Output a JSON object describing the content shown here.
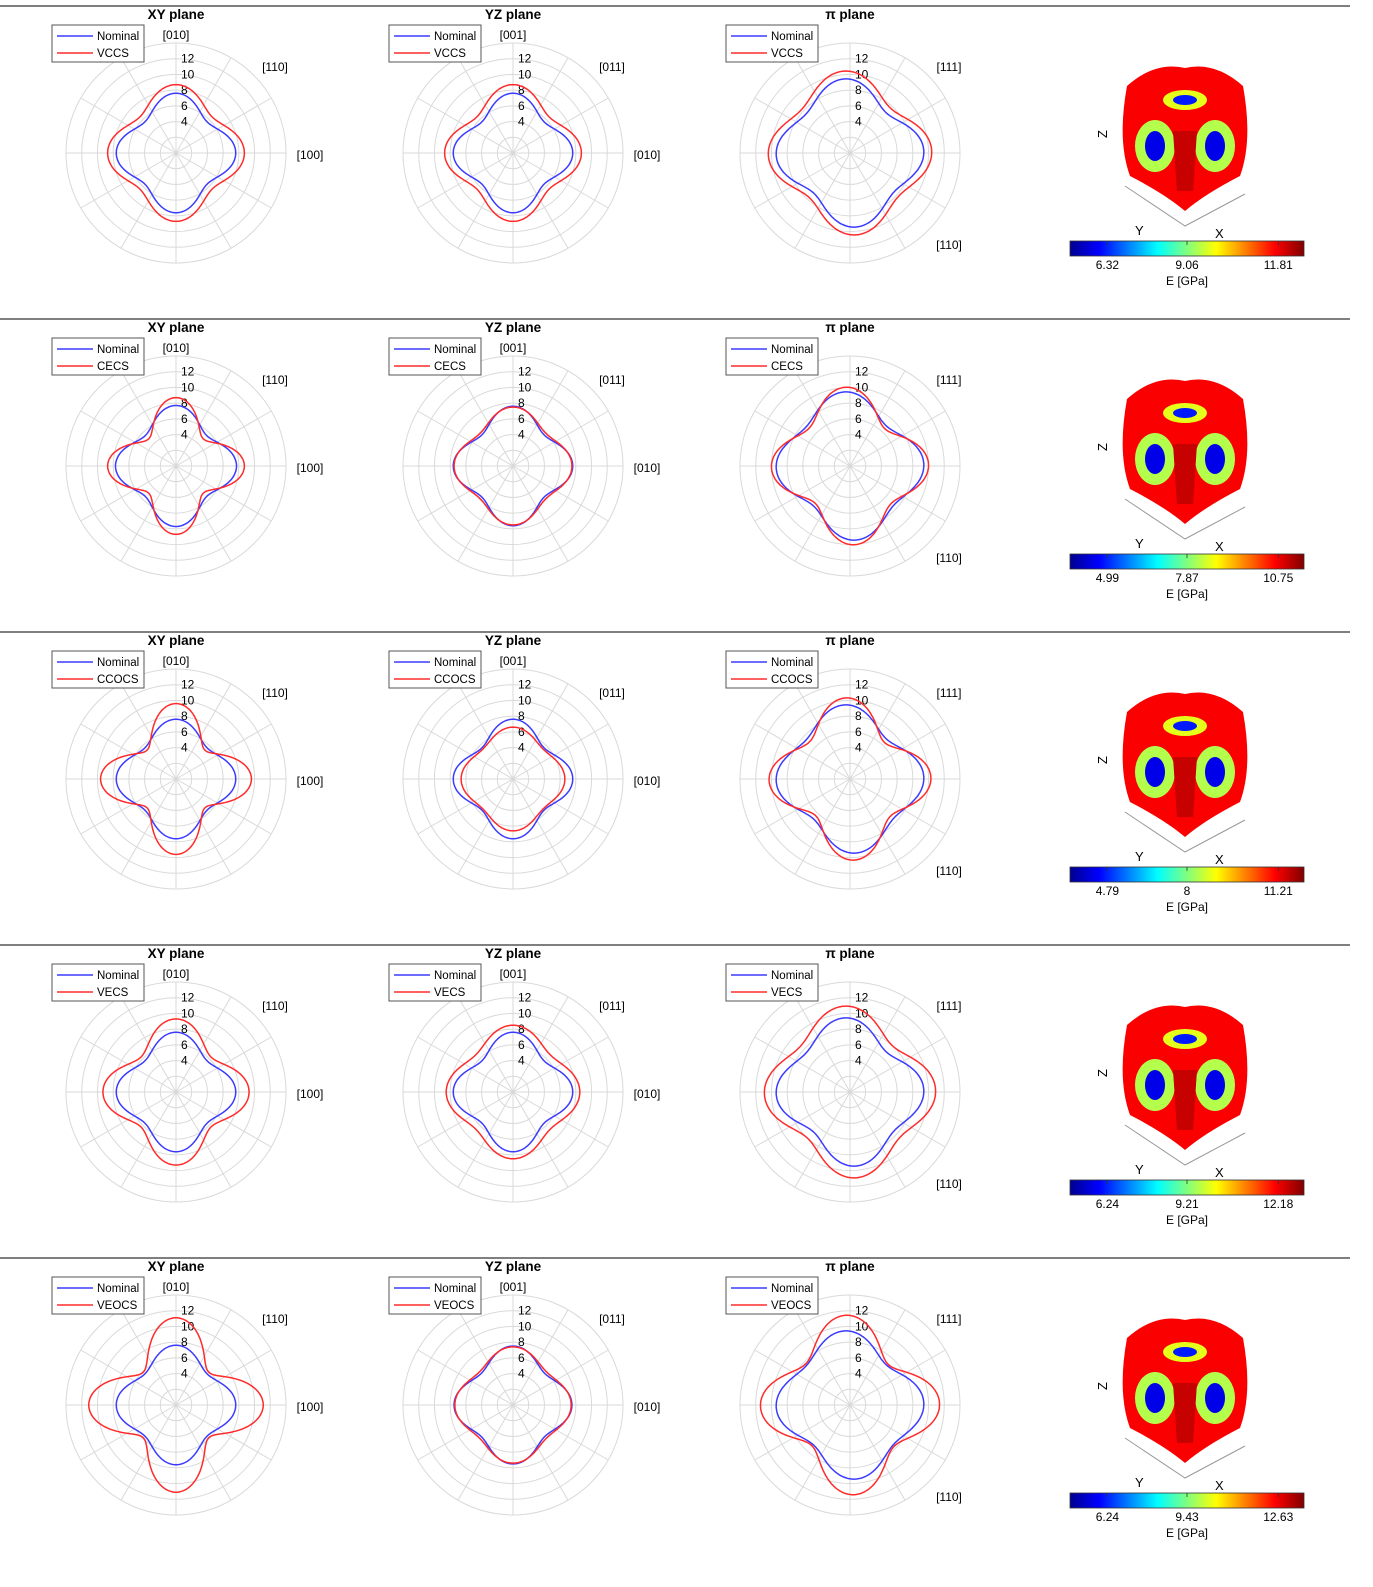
{
  "legend_nominal": "Nominal",
  "colorbar_label": "E [GPa]",
  "surface_axes": {
    "z": "Z",
    "y": "Y",
    "x": "X"
  },
  "colors": {
    "nominal": "#3b3bff",
    "variant": "#ff2b2b",
    "grid": "#d9d9d9",
    "separator": "#333333"
  },
  "chart_data": [
    {
      "type": "polar",
      "row": 1,
      "variant": "VCCS",
      "rticks": [
        "12",
        "10",
        "8",
        "6",
        "4"
      ],
      "rlim": [
        0,
        14
      ],
      "panels": [
        {
          "title": "XY plane",
          "labels": {
            "top": "[010]",
            "diag": "[110]",
            "right": "[100]"
          },
          "series": [
            {
              "name": "Nominal",
              "base": 6.6,
              "amp4": 1.0
            },
            {
              "name": "VCCS",
              "base": 7.6,
              "amp4": 1.1
            }
          ]
        },
        {
          "title": "YZ plane",
          "labels": {
            "top": "[001]",
            "diag": "[011]",
            "right": "[010]"
          },
          "series": [
            {
              "name": "Nominal",
              "base": 6.6,
              "amp4": 1.0
            },
            {
              "name": "VCCS",
              "base": 7.6,
              "amp4": 1.1
            }
          ]
        },
        {
          "title": "π plane",
          "labels": {
            "top": "",
            "diag": "[111]",
            "right": "",
            "bottomright": "[110]"
          },
          "series": [
            {
              "name": "Nominal",
              "base": 8.3,
              "amp4": 0.7
            },
            {
              "name": "VCCS",
              "base": 9.2,
              "amp4": 0.8
            }
          ]
        }
      ],
      "colorbar": {
        "ticks": [
          "6.32",
          "9.06",
          "11.81"
        ]
      }
    },
    {
      "type": "polar",
      "row": 2,
      "variant": "CECS",
      "rticks": [
        "12",
        "10",
        "8",
        "6",
        "4"
      ],
      "rlim": [
        0,
        14
      ],
      "panels": [
        {
          "title": "XY plane",
          "labels": {
            "top": "[010]",
            "diag": "[110]",
            "right": "[100]"
          },
          "series": [
            {
              "name": "Nominal",
              "base": 6.6,
              "amp4": 1.1
            },
            {
              "name": "CECS",
              "base": 6.8,
              "amp4": 1.9
            }
          ]
        },
        {
          "title": "YZ plane",
          "labels": {
            "top": "[001]",
            "diag": "[011]",
            "right": "[010]"
          },
          "series": [
            {
              "name": "Nominal",
              "base": 6.6,
              "amp4": 1.0
            },
            {
              "name": "CECS",
              "base": 6.7,
              "amp4": 0.8
            }
          ]
        },
        {
          "title": "π plane",
          "labels": {
            "top": "",
            "diag": "[111]",
            "right": "",
            "bottomright": "[110]"
          },
          "series": [
            {
              "name": "Nominal",
              "base": 8.3,
              "amp4": 0.7
            },
            {
              "name": "CECS",
              "base": 8.4,
              "amp4": 1.2
            }
          ]
        }
      ],
      "colorbar": {
        "ticks": [
          "4.99",
          "7.87",
          "10.75"
        ]
      }
    },
    {
      "type": "polar",
      "row": 3,
      "variant": "CCOCS",
      "rticks": [
        "12",
        "10",
        "8",
        "6",
        "4"
      ],
      "rlim": [
        0,
        14
      ],
      "panels": [
        {
          "title": "XY plane",
          "labels": {
            "top": "[010]",
            "diag": "[110]",
            "right": "[100]"
          },
          "series": [
            {
              "name": "Nominal",
              "base": 6.6,
              "amp4": 1.0
            },
            {
              "name": "CCOCS",
              "base": 7.4,
              "amp4": 2.2
            }
          ]
        },
        {
          "title": "YZ plane",
          "labels": {
            "top": "[001]",
            "diag": "[011]",
            "right": "[010]"
          },
          "series": [
            {
              "name": "Nominal",
              "base": 6.6,
              "amp4": 1.0
            },
            {
              "name": "CCOCS",
              "base": 6.0,
              "amp4": 0.6
            }
          ]
        },
        {
          "title": "π plane",
          "labels": {
            "top": "",
            "diag": "[111]",
            "right": "",
            "bottomright": "[110]"
          },
          "series": [
            {
              "name": "Nominal",
              "base": 8.3,
              "amp4": 0.7
            },
            {
              "name": "CCOCS",
              "base": 8.5,
              "amp4": 1.4
            }
          ]
        }
      ],
      "colorbar": {
        "ticks": [
          "4.79",
          "8",
          "11.21"
        ]
      }
    },
    {
      "type": "polar",
      "row": 4,
      "variant": "VECS",
      "rticks": [
        "12",
        "10",
        "8",
        "6",
        "4"
      ],
      "rlim": [
        0,
        14
      ],
      "panels": [
        {
          "title": "XY plane",
          "labels": {
            "top": "[010]",
            "diag": "[110]",
            "right": "[100]"
          },
          "series": [
            {
              "name": "Nominal",
              "base": 6.6,
              "amp4": 1.0
            },
            {
              "name": "VECS",
              "base": 7.8,
              "amp4": 1.5
            }
          ]
        },
        {
          "title": "YZ plane",
          "labels": {
            "top": "[001]",
            "diag": "[011]",
            "right": "[010]"
          },
          "series": [
            {
              "name": "Nominal",
              "base": 6.6,
              "amp4": 1.0
            },
            {
              "name": "VECS",
              "base": 7.6,
              "amp4": 0.9
            }
          ]
        },
        {
          "title": "π plane",
          "labels": {
            "top": "",
            "diag": "[111]",
            "right": "",
            "bottomright": "[110]"
          },
          "series": [
            {
              "name": "Nominal",
              "base": 8.3,
              "amp4": 0.7
            },
            {
              "name": "VECS",
              "base": 9.6,
              "amp4": 0.9
            }
          ]
        }
      ],
      "colorbar": {
        "ticks": [
          "6.24",
          "9.21",
          "12.18"
        ]
      }
    },
    {
      "type": "polar",
      "row": 5,
      "variant": "VEOCS",
      "rticks": [
        "12",
        "10",
        "8",
        "6",
        "4"
      ],
      "rlim": [
        0,
        14
      ],
      "panels": [
        {
          "title": "XY plane",
          "labels": {
            "top": "[010]",
            "diag": "[110]",
            "right": "[100]"
          },
          "series": [
            {
              "name": "Nominal",
              "base": 6.6,
              "amp4": 1.0
            },
            {
              "name": "VEOCS",
              "base": 8.5,
              "amp4": 2.6
            }
          ]
        },
        {
          "title": "YZ plane",
          "labels": {
            "top": "[001]",
            "diag": "[011]",
            "right": "[010]"
          },
          "series": [
            {
              "name": "Nominal",
              "base": 6.6,
              "amp4": 0.9
            },
            {
              "name": "VEOCS",
              "base": 6.7,
              "amp4": 0.7
            }
          ]
        },
        {
          "title": "π plane",
          "labels": {
            "top": "",
            "diag": "[111]",
            "right": "",
            "bottomright": "[110]"
          },
          "series": [
            {
              "name": "Nominal",
              "base": 8.3,
              "amp4": 0.7
            },
            {
              "name": "VEOCS",
              "base": 9.4,
              "amp4": 1.6
            }
          ]
        }
      ],
      "colorbar": {
        "ticks": [
          "6.24",
          "9.43",
          "12.63"
        ]
      }
    }
  ]
}
